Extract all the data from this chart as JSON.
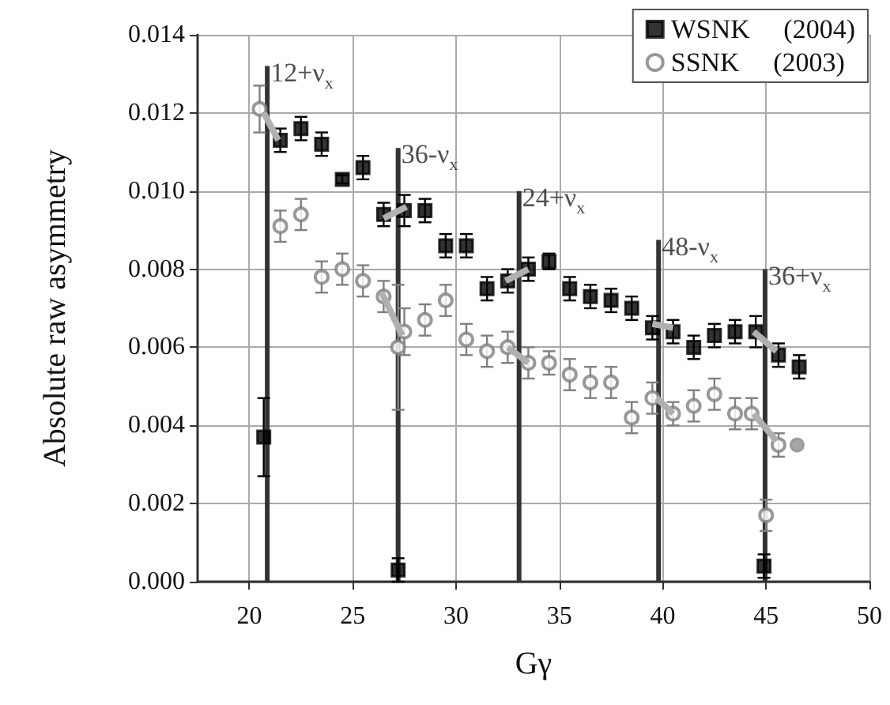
{
  "chart_data": {
    "type": "scatter",
    "xlabel": "Gγ",
    "ylabel": "Absolute raw asymmetry",
    "xlim": [
      17.5,
      50
    ],
    "xticks": [
      20,
      25,
      30,
      35,
      40,
      45,
      50
    ],
    "ylim": [
      0,
      0.014
    ],
    "yticks": [
      {
        "value": 0,
        "label": "0.000"
      },
      0.002,
      0.004,
      0.006,
      0.008,
      {
        "value": 0.01,
        "label": "0.010"
      },
      0.012,
      0.014
    ],
    "grid": true,
    "legend": "top right",
    "series": [
      {
        "name": "WSNK     (2004)",
        "marker": "square",
        "color": "#000000",
        "x": [
          20.7,
          21.5,
          22.5,
          23.5,
          24.5,
          25.5,
          26.5,
          27.2,
          27.5,
          28.5,
          29.5,
          30.5,
          31.5,
          32.5,
          33.5,
          34.5,
          35.5,
          36.5,
          37.5,
          38.5,
          39.5,
          40.5,
          41.5,
          42.5,
          43.5,
          44.5,
          44.9,
          45.6,
          46.6
        ],
        "values": [
          0.0037,
          0.0113,
          0.0116,
          0.0112,
          0.0103,
          0.0106,
          0.0094,
          0.0003,
          0.0095,
          0.0095,
          0.0086,
          0.0086,
          0.0075,
          0.0077,
          0.008,
          0.0082,
          0.0075,
          0.0073,
          0.0072,
          0.007,
          0.0065,
          0.0064,
          0.006,
          0.0063,
          0.0064,
          0.0064,
          0.0004,
          0.0058,
          0.0055
        ],
        "errors": [
          0.001,
          0.0003,
          0.0003,
          0.0003,
          0.0001,
          0.0003,
          0.0003,
          0.0003,
          0.0004,
          0.0003,
          0.0003,
          0.0003,
          0.0003,
          0.0003,
          0.0003,
          0.0002,
          0.0003,
          0.0003,
          0.0003,
          0.0003,
          0.0003,
          0.0003,
          0.0003,
          0.0003,
          0.0003,
          0.0004,
          0.0003,
          0.0003,
          0.0003
        ]
      },
      {
        "name": "SSNK     (2003)",
        "marker": "circle",
        "color": "#808080",
        "x": [
          20.5,
          21.5,
          22.5,
          23.5,
          24.5,
          25.5,
          26.5,
          27.2,
          27.5,
          28.5,
          29.5,
          30.5,
          31.5,
          32.5,
          33.5,
          34.5,
          35.5,
          36.5,
          37.5,
          38.5,
          39.5,
          40.5,
          41.5,
          42.5,
          43.5,
          44.3,
          45.0,
          45.6
        ],
        "values": [
          0.0121,
          0.0091,
          0.0094,
          0.0078,
          0.008,
          0.0077,
          0.0073,
          0.006,
          0.0064,
          0.0067,
          0.0072,
          0.0062,
          0.0059,
          0.006,
          0.0056,
          0.0056,
          0.0053,
          0.0051,
          0.0051,
          0.0042,
          0.0047,
          0.0043,
          0.0045,
          0.0048,
          0.0043,
          0.0043,
          0.0017,
          0.0035
        ],
        "errors": [
          0.0006,
          0.0004,
          0.0004,
          0.0004,
          0.0004,
          0.0004,
          0.0004,
          0.0016,
          0.0006,
          0.0004,
          0.0004,
          0.0004,
          0.0004,
          0.0004,
          0.0004,
          0.0003,
          0.0004,
          0.0004,
          0.0004,
          0.0004,
          0.0004,
          0.0003,
          0.0004,
          0.0004,
          0.0004,
          0.0004,
          0.0004,
          0.0003
        ]
      },
      {
        "marker": "circle",
        "color": "#909090",
        "x": [
          46.5
        ],
        "values": [
          0.0035
        ]
      },
      {
        "type": "bar",
        "color": "#333333",
        "x": [
          20.87,
          27.2,
          33.05,
          39.8,
          44.95
        ],
        "values": [
          0.0132,
          0.0111,
          0.01,
          0.00875,
          0.008
        ]
      },
      {
        "type": "line",
        "color": "#b0b0b0",
        "x": [
          20.7,
          21.4
        ],
        "values": [
          0.012,
          0.0113
        ]
      },
      {
        "type": "line",
        "color": "#b0b0b0",
        "x": [
          26.5,
          27.6
        ],
        "values": [
          0.0093,
          0.0096
        ]
      },
      {
        "type": "line",
        "color": "#b0b0b0",
        "x": [
          26.4,
          27.4
        ],
        "values": [
          0.0074,
          0.0063
        ]
      },
      {
        "type": "line",
        "color": "#b0b0b0",
        "x": [
          32.4,
          33.5
        ],
        "values": [
          0.0077,
          0.008
        ]
      },
      {
        "type": "line",
        "color": "#b0b0b0",
        "x": [
          32.5,
          33.5
        ],
        "values": [
          0.006,
          0.0056
        ]
      },
      {
        "type": "line",
        "color": "#b0b0b0",
        "x": [
          39.5,
          40.5
        ],
        "values": [
          0.0066,
          0.0065
        ]
      },
      {
        "type": "line",
        "color": "#b0b0b0",
        "x": [
          39.7,
          40.5
        ],
        "values": [
          0.0047,
          0.0043
        ]
      },
      {
        "type": "line",
        "color": "#b0b0b0",
        "x": [
          44.4,
          45.5
        ],
        "values": [
          0.0064,
          0.0059
        ]
      },
      {
        "type": "line",
        "color": "#b0b0b0",
        "x": [
          44.4,
          45.5
        ],
        "values": [
          0.0043,
          0.0036
        ]
      }
    ],
    "annotations": [
      {
        "text": "12+ν$_{x}$",
        "x": 20.87,
        "y": 0.0132
      },
      {
        "text": "36-ν$_{x}$",
        "x": 27.2,
        "y": 0.0111
      },
      {
        "text": "24+ν$_{x}$",
        "x": 33.05,
        "y": 0.01
      },
      {
        "text": "48-ν$_{x}$",
        "x": 39.8,
        "y": 0.00875
      },
      {
        "text": "36+ν$_{x}$",
        "x": 44.95,
        "y": 0.008
      }
    ]
  }
}
